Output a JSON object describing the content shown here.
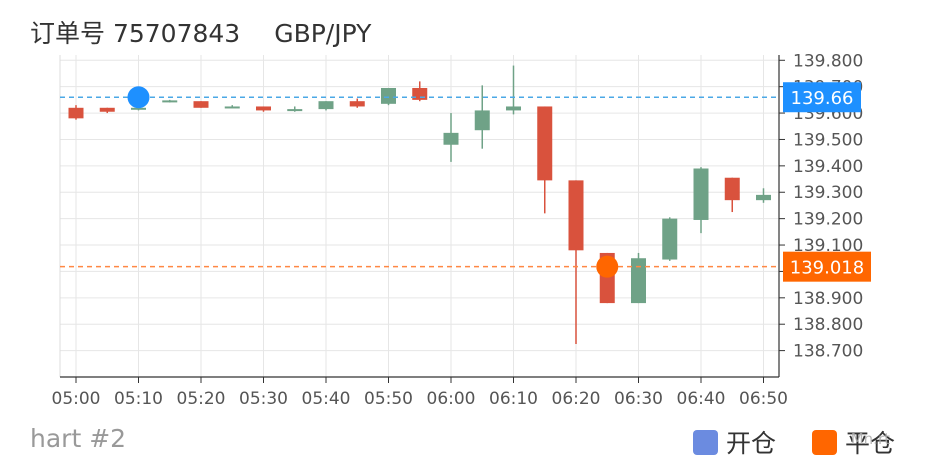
{
  "header": {
    "order_label": "订单号 75707843",
    "pair": "GBP/JPY"
  },
  "footer": {
    "chart_label": "hart #2",
    "legend_open": "开仓",
    "legend_close": "平仓",
    "watermark": "Mn.rt"
  },
  "colors": {
    "up": "#6fa287",
    "down": "#d9523d",
    "open_marker": "#1e90ff",
    "close_marker": "#ff6600",
    "open_line": "#4ba8e6",
    "close_line": "#ff8844",
    "legend_open": "#6b8be0",
    "legend_close": "#ff6600"
  },
  "chart_data": {
    "type": "candlestick",
    "x_ticks": [
      "05:00",
      "05:10",
      "05:20",
      "05:30",
      "05:40",
      "05:50",
      "06:00",
      "06:10",
      "06:20",
      "06:30",
      "06:40",
      "06:50"
    ],
    "y_ticks": [
      "139.800",
      "139.700",
      "139.600",
      "139.500",
      "139.400",
      "139.300",
      "139.200",
      "139.100",
      "139.000",
      "138.900",
      "138.800",
      "138.700"
    ],
    "ylim": [
      138.6,
      139.82
    ],
    "grid": true,
    "candles": [
      {
        "t": "05:00",
        "o": 139.62,
        "h": 139.63,
        "l": 139.575,
        "c": 139.58
      },
      {
        "t": "05:05",
        "o": 139.62,
        "h": 139.62,
        "l": 139.6,
        "c": 139.605
      },
      {
        "t": "05:10",
        "o": 139.615,
        "h": 139.68,
        "l": 139.61,
        "c": 139.62
      },
      {
        "t": "05:15",
        "o": 139.645,
        "h": 139.65,
        "l": 139.64,
        "c": 139.648
      },
      {
        "t": "05:20",
        "o": 139.645,
        "h": 139.645,
        "l": 139.62,
        "c": 139.62
      },
      {
        "t": "05:25",
        "o": 139.625,
        "h": 139.63,
        "l": 139.62,
        "c": 139.625
      },
      {
        "t": "05:30",
        "o": 139.625,
        "h": 139.625,
        "l": 139.605,
        "c": 139.61
      },
      {
        "t": "05:35",
        "o": 139.61,
        "h": 139.625,
        "l": 139.605,
        "c": 139.615
      },
      {
        "t": "05:40",
        "o": 139.615,
        "h": 139.645,
        "l": 139.61,
        "c": 139.645
      },
      {
        "t": "05:45",
        "o": 139.645,
        "h": 139.655,
        "l": 139.62,
        "c": 139.625
      },
      {
        "t": "05:50",
        "o": 139.635,
        "h": 139.695,
        "l": 139.63,
        "c": 139.695
      },
      {
        "t": "05:55",
        "o": 139.695,
        "h": 139.72,
        "l": 139.645,
        "c": 139.65
      },
      {
        "t": "06:00",
        "o": 139.48,
        "h": 139.6,
        "l": 139.415,
        "c": 139.525
      },
      {
        "t": "06:05",
        "o": 139.535,
        "h": 139.705,
        "l": 139.465,
        "c": 139.61
      },
      {
        "t": "06:10",
        "o": 139.61,
        "h": 139.78,
        "l": 139.595,
        "c": 139.625
      },
      {
        "t": "06:15",
        "o": 139.625,
        "h": 139.625,
        "l": 139.22,
        "c": 139.345
      },
      {
        "t": "06:20",
        "o": 139.345,
        "h": 139.345,
        "l": 138.725,
        "c": 139.08
      },
      {
        "t": "06:25",
        "o": 139.07,
        "h": 139.07,
        "l": 138.88,
        "c": 138.88
      },
      {
        "t": "06:30",
        "o": 138.88,
        "h": 139.07,
        "l": 138.88,
        "c": 139.05
      },
      {
        "t": "06:35",
        "o": 139.045,
        "h": 139.205,
        "l": 139.04,
        "c": 139.2
      },
      {
        "t": "06:40",
        "o": 139.195,
        "h": 139.395,
        "l": 139.145,
        "c": 139.39
      },
      {
        "t": "06:45",
        "o": 139.355,
        "h": 139.355,
        "l": 139.225,
        "c": 139.27
      },
      {
        "t": "06:50",
        "o": 139.27,
        "h": 139.315,
        "l": 139.26,
        "c": 139.29
      }
    ],
    "open_marker": {
      "t": "05:10",
      "price": 139.66
    },
    "close_marker": {
      "t": "06:25",
      "price": 139.018
    },
    "open_price_label": "139.66",
    "close_price_label": "139.018"
  }
}
